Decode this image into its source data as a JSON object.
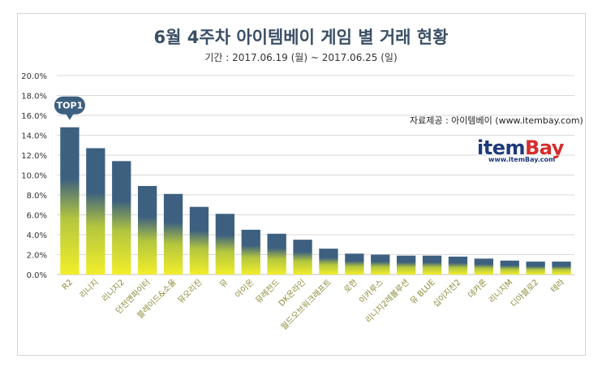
{
  "title": "6월 4주차 아이템베이 게임 별 거래 현황",
  "subtitle": "기간 : 2017.06.19 (월) ~ 2017.06.25 (일)",
  "source_note": "자료제공 : 아이템베이 (www.itembay.com)",
  "logo": {
    "brand_part1": "item",
    "brand_part2": "Bay",
    "url": "www.itemBay.com"
  },
  "colors": {
    "bar_top": "#3d6080",
    "bar_bottom": "#f2ee2a",
    "grid": "#d9d9d9",
    "callout": "#3d6080",
    "title": "#3b4f66"
  },
  "chart_data": {
    "type": "bar",
    "title": "6월 4주차 아이템베이 게임 별 거래 현황",
    "subtitle": "기간 : 2017.06.19 (월) ~ 2017.06.25 (일)",
    "categories": [
      "R2",
      "리니지",
      "리니지2",
      "던전앤파이터",
      "블레이드&소울",
      "뮤오리진",
      "뮤",
      "아이온",
      "뮤레전드",
      "DK온라인",
      "월드오브워크래프트",
      "로한",
      "이카루스",
      "리니지2레볼루션",
      "뮤 BLUE",
      "십이지천2",
      "데카론",
      "리니지M",
      "디아블로2",
      "테라"
    ],
    "values": [
      14.8,
      12.7,
      11.4,
      8.9,
      8.1,
      6.8,
      6.1,
      4.5,
      4.1,
      3.5,
      2.6,
      2.1,
      2.0,
      1.9,
      1.9,
      1.8,
      1.6,
      1.4,
      1.3,
      1.3
    ],
    "ylim": [
      0,
      20
    ],
    "yticks": [
      "0.0%",
      "2.0%",
      "4.0%",
      "6.0%",
      "8.0%",
      "10.0%",
      "12.0%",
      "14.0%",
      "16.0%",
      "18.0%",
      "20.0%"
    ],
    "annotation": "TOP1",
    "grid": true
  }
}
